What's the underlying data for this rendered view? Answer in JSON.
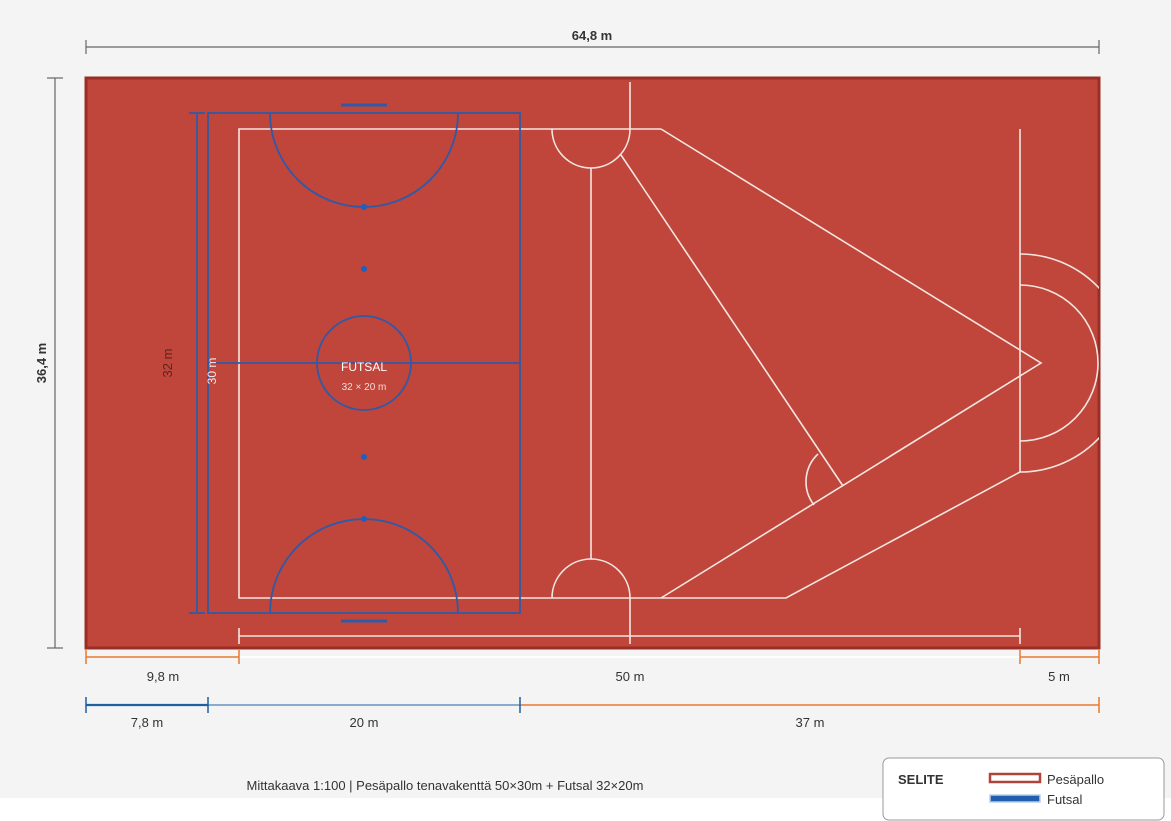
{
  "dimensions": {
    "total_width": "64,8 m",
    "total_height": "36,4 m",
    "futsal_length": "32 m",
    "futsal_inner": "30 m",
    "left_margin": "9,8 m",
    "pesapallo_length": "50 m",
    "right_margin": "5 m",
    "futsal_offset": "7,8 m",
    "futsal_width": "20 m",
    "remaining": "37 m"
  },
  "futsal": {
    "title": "FUTSAL",
    "size": "32 × 20 m"
  },
  "caption": "Mittakaava 1:100 | Pesäpallo tenavakenttä 50×30m + Futsal 32×20m",
  "legend": {
    "title": "SELITE",
    "items": [
      {
        "label": "Pesäpallo",
        "color": "#b0433a"
      },
      {
        "label": "Futsal",
        "color": "#1f5fae"
      }
    ]
  },
  "colors": {
    "field": "#c0453a",
    "border": "#9a2e25",
    "pesapallo_lines": "#f3e7e2",
    "futsal_lines": "#2f5aa8",
    "dimension_orange": "#e87a2e"
  }
}
